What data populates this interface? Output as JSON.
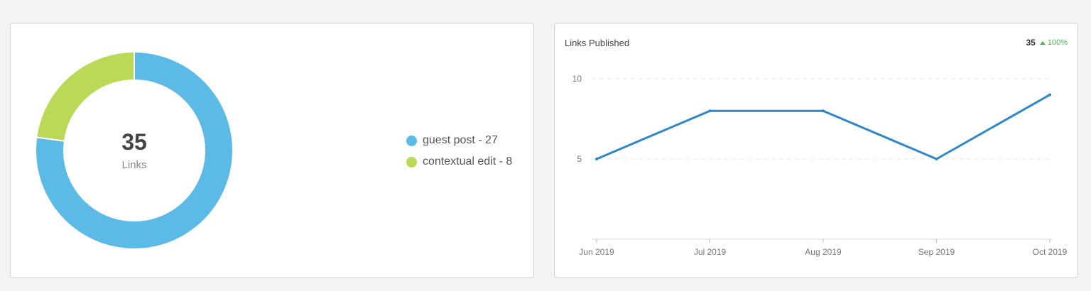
{
  "donut_panel": {
    "center_value": "35",
    "center_label": "Links",
    "legend": [
      {
        "label": "guest post - 27",
        "color": "#5cbbe6"
      },
      {
        "label": "contextual edit - 8",
        "color": "#b9d957"
      }
    ]
  },
  "line_panel": {
    "title": "Links Published",
    "total": "35",
    "change": "100%",
    "change_color": "#4caf50"
  },
  "chart_data": [
    {
      "type": "pie",
      "title": "",
      "categories": [
        "guest post",
        "contextual edit"
      ],
      "values": [
        27,
        8
      ],
      "colors": [
        "#5cbbe6",
        "#b9d957"
      ],
      "donut": true,
      "legend": "right"
    },
    {
      "type": "line",
      "title": "Links Published",
      "x": [
        "Jun 2019",
        "Jul 2019",
        "Aug 2019",
        "Sep 2019",
        "Oct 2019"
      ],
      "series": [
        {
          "values": [
            5,
            8,
            8,
            5,
            9
          ],
          "color": "#2f87c7"
        }
      ],
      "ylim": [
        0,
        10
      ],
      "yticks": [
        "5",
        "10"
      ],
      "grid": true,
      "xlabel": "",
      "ylabel": ""
    }
  ]
}
